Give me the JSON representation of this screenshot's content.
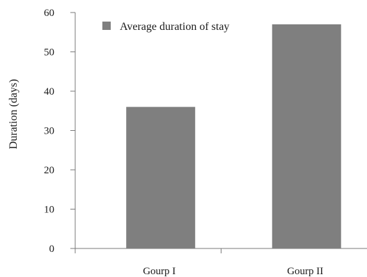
{
  "chart_data": {
    "type": "bar",
    "categories": [
      "Gourp I",
      "Gourp II"
    ],
    "series": [
      {
        "name": "Average duration of stay",
        "values": [
          36,
          57
        ]
      }
    ],
    "title": "",
    "xlabel": "",
    "ylabel": "Duration (days)",
    "ylim": [
      0,
      60
    ],
    "yticks": [
      0,
      10,
      20,
      30,
      40,
      50,
      60
    ],
    "grid": false,
    "legend_position": "top-left",
    "colors": {
      "bar": "#7f7f7f",
      "axis": "#7a7a7a",
      "text": "#1a1a1a"
    }
  }
}
